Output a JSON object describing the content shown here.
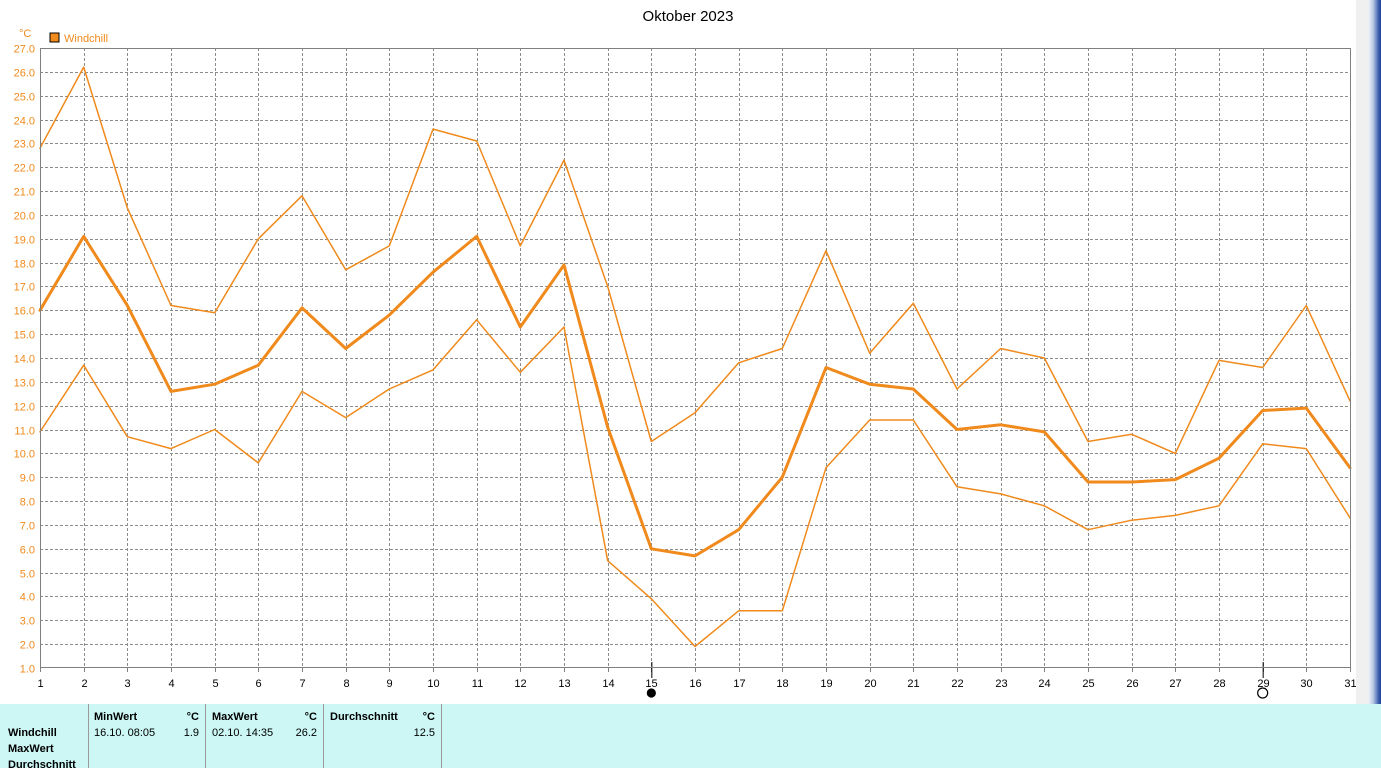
{
  "title": "Oktober 2023",
  "colors": {
    "series": "#f08a1c",
    "unit": "#f08a1c",
    "grid": "#8c8c8c",
    "table_bg": "#ccf7f5"
  },
  "chart_data": {
    "type": "line",
    "title": "Oktober 2023",
    "ylabel": "°C",
    "xlabel": "",
    "x": [
      1,
      2,
      3,
      4,
      5,
      6,
      7,
      8,
      9,
      10,
      11,
      12,
      13,
      14,
      15,
      16,
      17,
      18,
      19,
      20,
      21,
      22,
      23,
      24,
      25,
      26,
      27,
      28,
      29,
      30,
      31
    ],
    "ylim": [
      1.0,
      27.0
    ],
    "yticks": [
      "1.0",
      "2.0",
      "3.0",
      "4.0",
      "5.0",
      "6.0",
      "7.0",
      "8.0",
      "9.0",
      "10.0",
      "11.0",
      "12.0",
      "13.0",
      "14.0",
      "15.0",
      "16.0",
      "17.0",
      "18.0",
      "19.0",
      "20.0",
      "21.0",
      "22.0",
      "23.0",
      "24.0",
      "25.0",
      "26.0",
      "27.0"
    ],
    "grid": true,
    "legend": {
      "position": "top-left",
      "entries": [
        "Windchill"
      ]
    },
    "series": [
      {
        "name": "Windchill",
        "role": "max",
        "width": 1.5,
        "values": [
          22.8,
          26.2,
          20.3,
          16.2,
          15.9,
          19.0,
          20.8,
          17.7,
          18.7,
          23.6,
          23.1,
          18.7,
          22.3,
          17.0,
          10.5,
          11.7,
          13.8,
          14.4,
          18.5,
          14.2,
          16.3,
          12.7,
          14.4,
          14.0,
          10.5,
          10.8,
          10.0,
          13.9,
          13.6,
          16.2,
          12.2
        ]
      },
      {
        "name": "Windchill",
        "role": "avg",
        "width": 3,
        "values": [
          16.0,
          19.1,
          16.2,
          12.6,
          12.9,
          13.7,
          16.1,
          14.4,
          15.8,
          17.6,
          19.1,
          15.3,
          17.9,
          11.1,
          6.0,
          5.7,
          6.8,
          9.0,
          13.6,
          12.9,
          12.7,
          11.0,
          11.2,
          10.9,
          8.8,
          8.8,
          8.9,
          9.8,
          11.8,
          11.9,
          9.4
        ]
      },
      {
        "name": "Windchill",
        "role": "min",
        "width": 1.5,
        "values": [
          10.9,
          13.7,
          10.7,
          10.2,
          11.0,
          9.6,
          12.6,
          11.5,
          12.7,
          13.5,
          15.6,
          13.4,
          15.3,
          5.5,
          3.9,
          1.9,
          3.4,
          3.4,
          9.4,
          11.4,
          11.4,
          8.6,
          8.3,
          7.8,
          6.8,
          7.2,
          7.4,
          7.8,
          10.4,
          10.2,
          7.3
        ]
      }
    ],
    "markers": [
      {
        "x": 15,
        "symbol": "new-moon"
      },
      {
        "x": 29,
        "symbol": "full-moon"
      }
    ]
  },
  "table": {
    "row_labels": [
      "Windchill",
      "MaxWert",
      "Durchschnitt"
    ],
    "columns": [
      {
        "header": "MinWert",
        "unit": "°C",
        "time": "16.10.  08:05",
        "value": "1.9"
      },
      {
        "header": "MaxWert",
        "unit": "°C",
        "time": "02.10.  14:35",
        "value": "26.2"
      },
      {
        "header": "Durchschnitt",
        "unit": "°C",
        "time": "",
        "value": "12.5"
      }
    ]
  }
}
